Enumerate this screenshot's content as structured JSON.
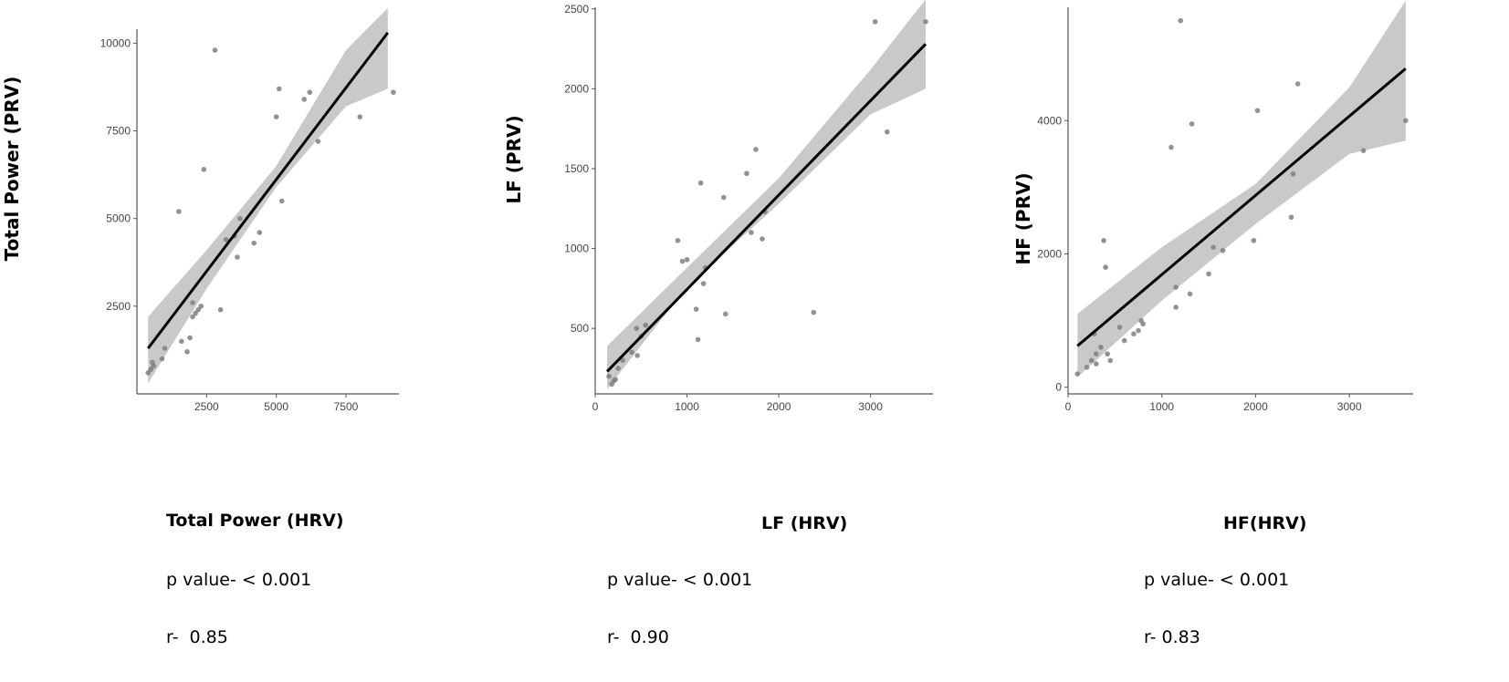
{
  "chart_data": [
    {
      "type": "scatter",
      "xlabel": "Total Power (HRV)",
      "ylabel": "Total Power (PRV)",
      "p_value": "p value- < 0.001",
      "r_value": "r-  0.85",
      "xlim": [
        0,
        9400
      ],
      "ylim": [
        0,
        10400
      ],
      "xticks": [
        2500,
        5000,
        7500
      ],
      "yticks": [
        2500,
        5000,
        7500,
        10000
      ],
      "points": [
        [
          400,
          600
        ],
        [
          500,
          700
        ],
        [
          550,
          900
        ],
        [
          600,
          800
        ],
        [
          900,
          1000
        ],
        [
          1000,
          1300
        ],
        [
          1500,
          5200
        ],
        [
          1600,
          1500
        ],
        [
          1800,
          1200
        ],
        [
          1900,
          1600
        ],
        [
          2000,
          2200
        ],
        [
          2000,
          2600
        ],
        [
          2100,
          2300
        ],
        [
          2200,
          2400
        ],
        [
          2300,
          2500
        ],
        [
          2400,
          6400
        ],
        [
          2800,
          9800
        ],
        [
          3000,
          2400
        ],
        [
          3200,
          4400
        ],
        [
          3500,
          4500
        ],
        [
          3600,
          3900
        ],
        [
          3700,
          5000
        ],
        [
          4200,
          4300
        ],
        [
          4400,
          4600
        ],
        [
          5000,
          7900
        ],
        [
          5100,
          8700
        ],
        [
          5200,
          5500
        ],
        [
          6000,
          8400
        ],
        [
          6200,
          8600
        ],
        [
          6500,
          7200
        ],
        [
          8000,
          7900
        ],
        [
          9200,
          8600
        ]
      ],
      "fit": {
        "x": [
          400,
          9000
        ],
        "y": [
          1300,
          10300
        ]
      },
      "band": {
        "x": [
          400,
          2500,
          5000,
          7500,
          9000
        ],
        "lower": [
          300,
          3000,
          5900,
          8200,
          8700
        ],
        "upper": [
          2200,
          4100,
          6500,
          9800,
          11000
        ]
      }
    },
    {
      "type": "scatter",
      "xlabel": "LF (HRV)",
      "ylabel": "LF (PRV)",
      "p_value": "p value- < 0.001",
      "r_value": "r-  0.90",
      "xlim": [
        0,
        3680
      ],
      "ylim": [
        90,
        2510
      ],
      "xticks": [
        0,
        1000,
        2000,
        3000
      ],
      "yticks": [
        500,
        1000,
        1500,
        2000,
        2500
      ],
      "points": [
        [
          150,
          200
        ],
        [
          180,
          150
        ],
        [
          200,
          170
        ],
        [
          220,
          180
        ],
        [
          250,
          250
        ],
        [
          300,
          300
        ],
        [
          400,
          350
        ],
        [
          450,
          500
        ],
        [
          460,
          330
        ],
        [
          500,
          450
        ],
        [
          550,
          520
        ],
        [
          900,
          1050
        ],
        [
          950,
          920
        ],
        [
          1000,
          930
        ],
        [
          1100,
          620
        ],
        [
          1120,
          430
        ],
        [
          1150,
          1410
        ],
        [
          1180,
          780
        ],
        [
          1200,
          880
        ],
        [
          1400,
          1320
        ],
        [
          1420,
          590
        ],
        [
          1650,
          1470
        ],
        [
          1700,
          1100
        ],
        [
          1750,
          1620
        ],
        [
          1820,
          1060
        ],
        [
          1850,
          1230
        ],
        [
          2380,
          600
        ],
        [
          3050,
          2420
        ],
        [
          3180,
          1730
        ],
        [
          3600,
          2420
        ]
      ],
      "fit": {
        "x": [
          130,
          3600
        ],
        "y": [
          230,
          2280
        ]
      },
      "band": {
        "x": [
          130,
          1000,
          2000,
          3000,
          3600
        ],
        "lower": [
          120,
          760,
          1280,
          1840,
          2000
        ],
        "upper": [
          390,
          880,
          1440,
          2120,
          2560
        ]
      }
    },
    {
      "type": "scatter",
      "xlabel": "HF(HRV)",
      "ylabel": "HF (PRV)",
      "p_value": "p value- < 0.001",
      "r_value": "r- 0.83",
      "xlim": [
        0,
        3680
      ],
      "ylim": [
        -100,
        5700
      ],
      "xticks": [
        0,
        1000,
        2000,
        3000
      ],
      "yticks": [
        0,
        2000,
        4000
      ],
      "points": [
        [
          100,
          200
        ],
        [
          200,
          300
        ],
        [
          250,
          400
        ],
        [
          280,
          800
        ],
        [
          300,
          500
        ],
        [
          300,
          350
        ],
        [
          350,
          600
        ],
        [
          380,
          2200
        ],
        [
          400,
          1800
        ],
        [
          420,
          500
        ],
        [
          450,
          400
        ],
        [
          550,
          900
        ],
        [
          600,
          700
        ],
        [
          700,
          800
        ],
        [
          750,
          850
        ],
        [
          780,
          1000
        ],
        [
          800,
          950
        ],
        [
          1100,
          3600
        ],
        [
          1150,
          1500
        ],
        [
          1150,
          1200
        ],
        [
          1200,
          5500
        ],
        [
          1300,
          1400
        ],
        [
          1320,
          3950
        ],
        [
          1500,
          1700
        ],
        [
          1550,
          2100
        ],
        [
          1650,
          2050
        ],
        [
          1980,
          2200
        ],
        [
          2020,
          4150
        ],
        [
          2380,
          2550
        ],
        [
          2400,
          3200
        ],
        [
          2450,
          4550
        ],
        [
          3150,
          3550
        ],
        [
          3600,
          4000
        ]
      ],
      "fit": {
        "x": [
          100,
          3600
        ],
        "y": [
          620,
          4780
        ]
      },
      "band": {
        "x": [
          100,
          1000,
          2000,
          3000,
          3600
        ],
        "lower": [
          150,
          1300,
          2450,
          3500,
          3700
        ],
        "upper": [
          1100,
          2100,
          3050,
          4500,
          5800
        ]
      }
    }
  ]
}
